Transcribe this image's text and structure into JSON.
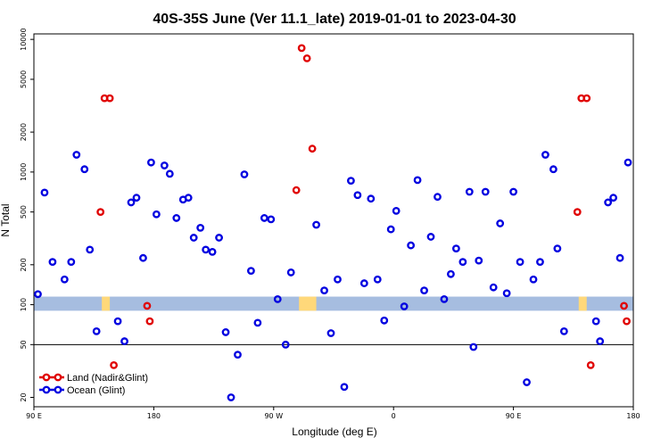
{
  "chart_data": {
    "type": "scatter",
    "title": "40S-35S June (Ver 11.1_late)   2019-01-01 to 2023-04-30",
    "xlabel": "Longitude (deg E)",
    "ylabel": "N Total",
    "x_ticks": [
      {
        "value": 90,
        "label": "90 E"
      },
      {
        "value": 180,
        "label": "180"
      },
      {
        "value": 270,
        "label": "90 W"
      },
      {
        "value": 360,
        "label": "0"
      },
      {
        "value": 450,
        "label": "90 E"
      },
      {
        "value": 540,
        "label": "180"
      }
    ],
    "y_ticks": [
      20,
      50,
      100,
      200,
      500,
      1000,
      2000,
      5000,
      10000
    ],
    "y_scale": "log",
    "xlim": [
      90,
      540
    ],
    "ylim": [
      17,
      11000
    ],
    "reference_line": 50,
    "band": {
      "low": 90,
      "high": 115,
      "color": "#a6bde0"
    },
    "band_highlights": [
      {
        "x_from": 141,
        "x_to": 147,
        "color": "#ffd87a"
      },
      {
        "x_from": 289,
        "x_to": 302,
        "color": "#ffd87a"
      },
      {
        "x_from": 499,
        "x_to": 505,
        "color": "#ffd87a"
      }
    ],
    "series": [
      {
        "name": "Land (Nadir&Glint)",
        "color": "#e00000",
        "points": [
          {
            "x": 140,
            "y": 500
          },
          {
            "x": 143,
            "y": 3600
          },
          {
            "x": 147,
            "y": 3600
          },
          {
            "x": 150,
            "y": 35
          },
          {
            "x": 175,
            "y": 98
          },
          {
            "x": 177,
            "y": 75
          },
          {
            "x": 287,
            "y": 730
          },
          {
            "x": 291,
            "y": 8600
          },
          {
            "x": 295,
            "y": 7200
          },
          {
            "x": 299,
            "y": 1500
          },
          {
            "x": 498,
            "y": 500
          },
          {
            "x": 501,
            "y": 3600
          },
          {
            "x": 505,
            "y": 3600
          },
          {
            "x": 508,
            "y": 35
          },
          {
            "x": 533,
            "y": 98
          },
          {
            "x": 535,
            "y": 75
          }
        ]
      },
      {
        "name": "Ocean (Glint)",
        "color": "#0000e0",
        "points": [
          {
            "x": 93,
            "y": 120
          },
          {
            "x": 98,
            "y": 700
          },
          {
            "x": 104,
            "y": 210
          },
          {
            "x": 113,
            "y": 155
          },
          {
            "x": 118,
            "y": 210
          },
          {
            "x": 122,
            "y": 1350
          },
          {
            "x": 128,
            "y": 1050
          },
          {
            "x": 132,
            "y": 260
          },
          {
            "x": 137,
            "y": 63
          },
          {
            "x": 153,
            "y": 75
          },
          {
            "x": 158,
            "y": 53
          },
          {
            "x": 163,
            "y": 590
          },
          {
            "x": 167,
            "y": 640
          },
          {
            "x": 172,
            "y": 225
          },
          {
            "x": 178,
            "y": 1180
          },
          {
            "x": 182,
            "y": 480
          },
          {
            "x": 188,
            "y": 1120
          },
          {
            "x": 192,
            "y": 970
          },
          {
            "x": 197,
            "y": 450
          },
          {
            "x": 202,
            "y": 620
          },
          {
            "x": 206,
            "y": 640
          },
          {
            "x": 210,
            "y": 320
          },
          {
            "x": 215,
            "y": 380
          },
          {
            "x": 219,
            "y": 260
          },
          {
            "x": 224,
            "y": 250
          },
          {
            "x": 229,
            "y": 320
          },
          {
            "x": 234,
            "y": 62
          },
          {
            "x": 238,
            "y": 20
          },
          {
            "x": 243,
            "y": 42
          },
          {
            "x": 248,
            "y": 960
          },
          {
            "x": 253,
            "y": 180
          },
          {
            "x": 258,
            "y": 73
          },
          {
            "x": 263,
            "y": 450
          },
          {
            "x": 268,
            "y": 440
          },
          {
            "x": 273,
            "y": 110
          },
          {
            "x": 279,
            "y": 50
          },
          {
            "x": 283,
            "y": 175
          },
          {
            "x": 302,
            "y": 400
          },
          {
            "x": 308,
            "y": 128
          },
          {
            "x": 313,
            "y": 61
          },
          {
            "x": 318,
            "y": 155
          },
          {
            "x": 323,
            "y": 24
          },
          {
            "x": 328,
            "y": 860
          },
          {
            "x": 333,
            "y": 670
          },
          {
            "x": 338,
            "y": 145
          },
          {
            "x": 343,
            "y": 630
          },
          {
            "x": 348,
            "y": 155
          },
          {
            "x": 353,
            "y": 76
          },
          {
            "x": 358,
            "y": 370
          },
          {
            "x": 362,
            "y": 510
          },
          {
            "x": 368,
            "y": 97
          },
          {
            "x": 373,
            "y": 280
          },
          {
            "x": 378,
            "y": 870
          },
          {
            "x": 383,
            "y": 128
          },
          {
            "x": 388,
            "y": 325
          },
          {
            "x": 393,
            "y": 650
          },
          {
            "x": 398,
            "y": 110
          },
          {
            "x": 403,
            "y": 170
          },
          {
            "x": 407,
            "y": 265
          },
          {
            "x": 412,
            "y": 210
          },
          {
            "x": 417,
            "y": 710
          },
          {
            "x": 420,
            "y": 48
          },
          {
            "x": 424,
            "y": 215
          },
          {
            "x": 429,
            "y": 710
          },
          {
            "x": 435,
            "y": 135
          },
          {
            "x": 440,
            "y": 410
          },
          {
            "x": 445,
            "y": 122
          },
          {
            "x": 450,
            "y": 710
          },
          {
            "x": 455,
            "y": 210
          },
          {
            "x": 460,
            "y": 26
          },
          {
            "x": 465,
            "y": 155
          },
          {
            "x": 470,
            "y": 210
          },
          {
            "x": 474,
            "y": 1350
          },
          {
            "x": 480,
            "y": 1050
          },
          {
            "x": 483,
            "y": 265
          },
          {
            "x": 488,
            "y": 63
          },
          {
            "x": 512,
            "y": 75
          },
          {
            "x": 515,
            "y": 53
          },
          {
            "x": 521,
            "y": 590
          },
          {
            "x": 525,
            "y": 640
          },
          {
            "x": 530,
            "y": 225
          },
          {
            "x": 536,
            "y": 1180
          }
        ]
      }
    ],
    "legend": {
      "placement": "bottom-left"
    }
  }
}
